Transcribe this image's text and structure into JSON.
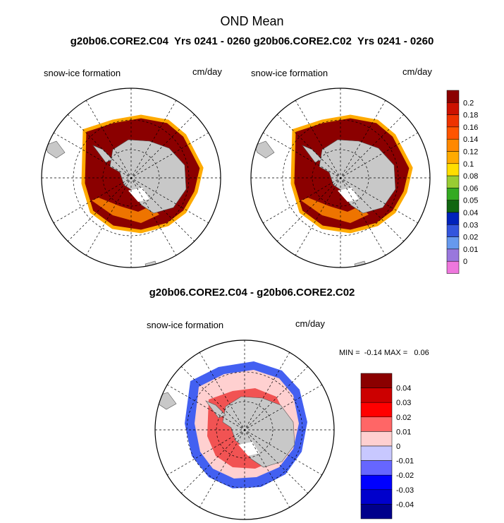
{
  "figure_title": "OND Mean",
  "header_line": "g20b06.CORE2.C04  Yrs 0241 - 0260 g20b06.CORE2.C02  Yrs 0241 - 0260",
  "diff_title": "g20b06.CORE2.C04 - g20b06.CORE2.C02",
  "panels": [
    {
      "variable": "snow-ice formation",
      "units": "cm/day"
    },
    {
      "variable": "snow-ice formation",
      "units": "cm/day"
    },
    {
      "variable": "snow-ice formation",
      "units": "cm/day"
    }
  ],
  "min_max": "MIN =  -0.14 MAX =   0.06",
  "chart_data": [
    {
      "type": "heatmap",
      "projection": "south-polar-stereographic",
      "title": "snow-ice formation",
      "units": "cm/day",
      "run": "g20b06.CORE2.C04",
      "years": "0241 - 0260",
      "season": "OND Mean",
      "description": "Broad ring of high values (>0.2) around the Antarctic continent; lower values at outer ice edge"
    },
    {
      "type": "heatmap",
      "projection": "south-polar-stereographic",
      "title": "snow-ice formation",
      "units": "cm/day",
      "run": "g20b06.CORE2.C02",
      "years": "0241 - 0260",
      "season": "OND Mean",
      "description": "Similar ring pattern to C04 with maximum values (>0.2) around Antarctica"
    },
    {
      "type": "heatmap",
      "projection": "south-polar-stereographic",
      "title": "snow-ice formation",
      "units": "cm/day",
      "difference": "g20b06.CORE2.C04 - g20b06.CORE2.C02",
      "min": -0.14,
      "max": 0.06,
      "description": "Positive differences (reds) in inner ice pack, negative differences (blues) at outer ice edge"
    }
  ],
  "colorbar_top": {
    "labels": [
      "0.2",
      "0.18",
      "0.16",
      "0.14",
      "0.12",
      "0.1",
      "0.08",
      "0.06",
      "0.05",
      "0.04",
      "0.03",
      "0.02",
      "0.01",
      "0"
    ],
    "colors": [
      "#8b0000",
      "#cc1100",
      "#ee3300",
      "#ff5500",
      "#ff8800",
      "#ffaa00",
      "#ffdd00",
      "#99cc33",
      "#33aa22",
      "#116611",
      "#0022bb",
      "#3355dd",
      "#6699ee",
      "#9977dd",
      "#ee77dd"
    ]
  },
  "colorbar_diff": {
    "labels": [
      "0.04",
      "0.03",
      "0.02",
      "0.01",
      "0",
      "-0.01",
      "-0.02",
      "-0.03",
      "-0.04"
    ],
    "colors": [
      "#8b0000",
      "#cc0000",
      "#ff0000",
      "#ff6666",
      "#ffd0d0",
      "#c8c8ff",
      "#6666ff",
      "#0000ff",
      "#0000cc",
      "#00008b"
    ]
  }
}
